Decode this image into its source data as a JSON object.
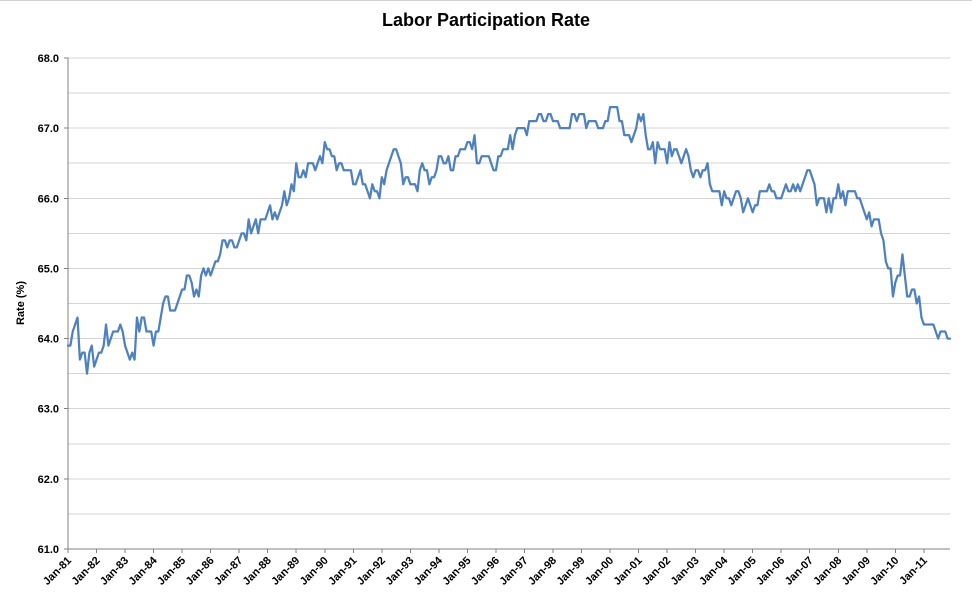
{
  "chart_data": {
    "type": "line",
    "title": "Labor Participation Rate",
    "xlabel": "",
    "ylabel": "Rate (%)",
    "ylim": [
      61.0,
      68.0
    ],
    "y_major_tick": 1.0,
    "y_gridline_interval": 0.5,
    "grid": "horizontal-only",
    "legend": "none",
    "frequency": "monthly",
    "x_start": "Jan-81",
    "x_end": "Dec-11",
    "points_per_tick": 12,
    "n_points": 372,
    "line_color": "#4F81BD",
    "grid_color": "#D4D4D4",
    "axis_color": "#808080",
    "x_tick_labels": [
      "Jan-81",
      "Jan-82",
      "Jan-83",
      "Jan-84",
      "Jan-85",
      "Jan-86",
      "Jan-87",
      "Jan-88",
      "Jan-89",
      "Jan-90",
      "Jan-91",
      "Jan-92",
      "Jan-93",
      "Jan-94",
      "Jan-95",
      "Jan-96",
      "Jan-97",
      "Jan-98",
      "Jan-99",
      "Jan-00",
      "Jan-01",
      "Jan-02",
      "Jan-03",
      "Jan-04",
      "Jan-05",
      "Jan-06",
      "Jan-07",
      "Jan-08",
      "Jan-09",
      "Jan-10",
      "Jan-11"
    ],
    "series": [
      {
        "name": "Labor Participation Rate",
        "values": [
          63.9,
          63.9,
          64.1,
          64.2,
          64.3,
          63.7,
          63.8,
          63.8,
          63.5,
          63.8,
          63.9,
          63.6,
          63.7,
          63.8,
          63.8,
          63.9,
          64.2,
          63.9,
          64.0,
          64.1,
          64.1,
          64.1,
          64.2,
          64.1,
          63.9,
          63.8,
          63.7,
          63.8,
          63.7,
          64.3,
          64.1,
          64.3,
          64.3,
          64.1,
          64.1,
          64.1,
          63.9,
          64.1,
          64.1,
          64.3,
          64.5,
          64.6,
          64.6,
          64.4,
          64.4,
          64.4,
          64.5,
          64.6,
          64.7,
          64.7,
          64.9,
          64.9,
          64.8,
          64.6,
          64.7,
          64.6,
          64.9,
          65.0,
          64.9,
          65.0,
          64.9,
          65.0,
          65.1,
          65.1,
          65.2,
          65.4,
          65.4,
          65.3,
          65.4,
          65.4,
          65.3,
          65.3,
          65.4,
          65.5,
          65.5,
          65.4,
          65.7,
          65.5,
          65.6,
          65.7,
          65.5,
          65.7,
          65.7,
          65.7,
          65.8,
          65.9,
          65.7,
          65.8,
          65.7,
          65.8,
          65.9,
          66.1,
          65.9,
          66.0,
          66.2,
          66.1,
          66.5,
          66.3,
          66.3,
          66.4,
          66.3,
          66.5,
          66.5,
          66.5,
          66.4,
          66.5,
          66.6,
          66.5,
          66.8,
          66.7,
          66.7,
          66.6,
          66.6,
          66.4,
          66.5,
          66.5,
          66.4,
          66.4,
          66.4,
          66.4,
          66.2,
          66.2,
          66.3,
          66.4,
          66.2,
          66.2,
          66.1,
          66.0,
          66.2,
          66.1,
          66.1,
          66.0,
          66.3,
          66.2,
          66.4,
          66.5,
          66.6,
          66.7,
          66.7,
          66.6,
          66.5,
          66.2,
          66.3,
          66.3,
          66.2,
          66.2,
          66.2,
          66.1,
          66.4,
          66.5,
          66.4,
          66.4,
          66.2,
          66.3,
          66.3,
          66.4,
          66.6,
          66.6,
          66.5,
          66.5,
          66.6,
          66.4,
          66.4,
          66.6,
          66.6,
          66.7,
          66.7,
          66.7,
          66.8,
          66.8,
          66.7,
          66.9,
          66.5,
          66.5,
          66.6,
          66.6,
          66.6,
          66.6,
          66.5,
          66.4,
          66.4,
          66.6,
          66.6,
          66.7,
          66.7,
          66.7,
          66.9,
          66.7,
          66.9,
          67.0,
          67.0,
          67.0,
          67.0,
          66.9,
          67.1,
          67.1,
          67.1,
          67.1,
          67.2,
          67.2,
          67.1,
          67.1,
          67.2,
          67.2,
          67.1,
          67.1,
          67.1,
          67.0,
          67.0,
          67.0,
          67.0,
          67.0,
          67.2,
          67.2,
          67.1,
          67.2,
          67.2,
          67.2,
          67.0,
          67.1,
          67.1,
          67.1,
          67.1,
          67.0,
          67.0,
          67.0,
          67.1,
          67.1,
          67.3,
          67.3,
          67.3,
          67.3,
          67.1,
          67.1,
          66.9,
          66.9,
          66.9,
          66.8,
          66.9,
          67.0,
          67.2,
          67.1,
          67.2,
          66.9,
          66.7,
          66.7,
          66.8,
          66.5,
          66.8,
          66.7,
          66.7,
          66.7,
          66.5,
          66.8,
          66.6,
          66.7,
          66.7,
          66.6,
          66.5,
          66.6,
          66.7,
          66.6,
          66.4,
          66.3,
          66.4,
          66.4,
          66.3,
          66.4,
          66.4,
          66.5,
          66.2,
          66.1,
          66.1,
          66.1,
          66.1,
          65.9,
          66.1,
          66.0,
          66.0,
          65.9,
          66.0,
          66.1,
          66.1,
          66.0,
          65.8,
          65.9,
          66.0,
          65.9,
          65.8,
          65.9,
          65.9,
          66.1,
          66.1,
          66.1,
          66.1,
          66.2,
          66.1,
          66.1,
          66.0,
          66.0,
          66.0,
          66.1,
          66.2,
          66.1,
          66.1,
          66.2,
          66.1,
          66.2,
          66.1,
          66.2,
          66.3,
          66.4,
          66.4,
          66.3,
          66.2,
          65.9,
          66.0,
          66.0,
          66.0,
          65.8,
          66.0,
          65.8,
          66.0,
          66.0,
          66.2,
          66.0,
          66.1,
          65.9,
          66.1,
          66.1,
          66.1,
          66.1,
          66.0,
          66.0,
          65.9,
          65.8,
          65.7,
          65.8,
          65.6,
          65.7,
          65.7,
          65.7,
          65.5,
          65.4,
          65.1,
          65.0,
          65.0,
          64.6,
          64.8,
          64.9,
          64.9,
          65.2,
          64.9,
          64.6,
          64.6,
          64.7,
          64.7,
          64.5,
          64.6,
          64.3,
          64.2,
          64.2,
          64.2,
          64.2,
          64.2,
          64.1,
          64.0,
          64.1,
          64.1,
          64.1,
          64.0,
          64.0
        ]
      }
    ]
  }
}
